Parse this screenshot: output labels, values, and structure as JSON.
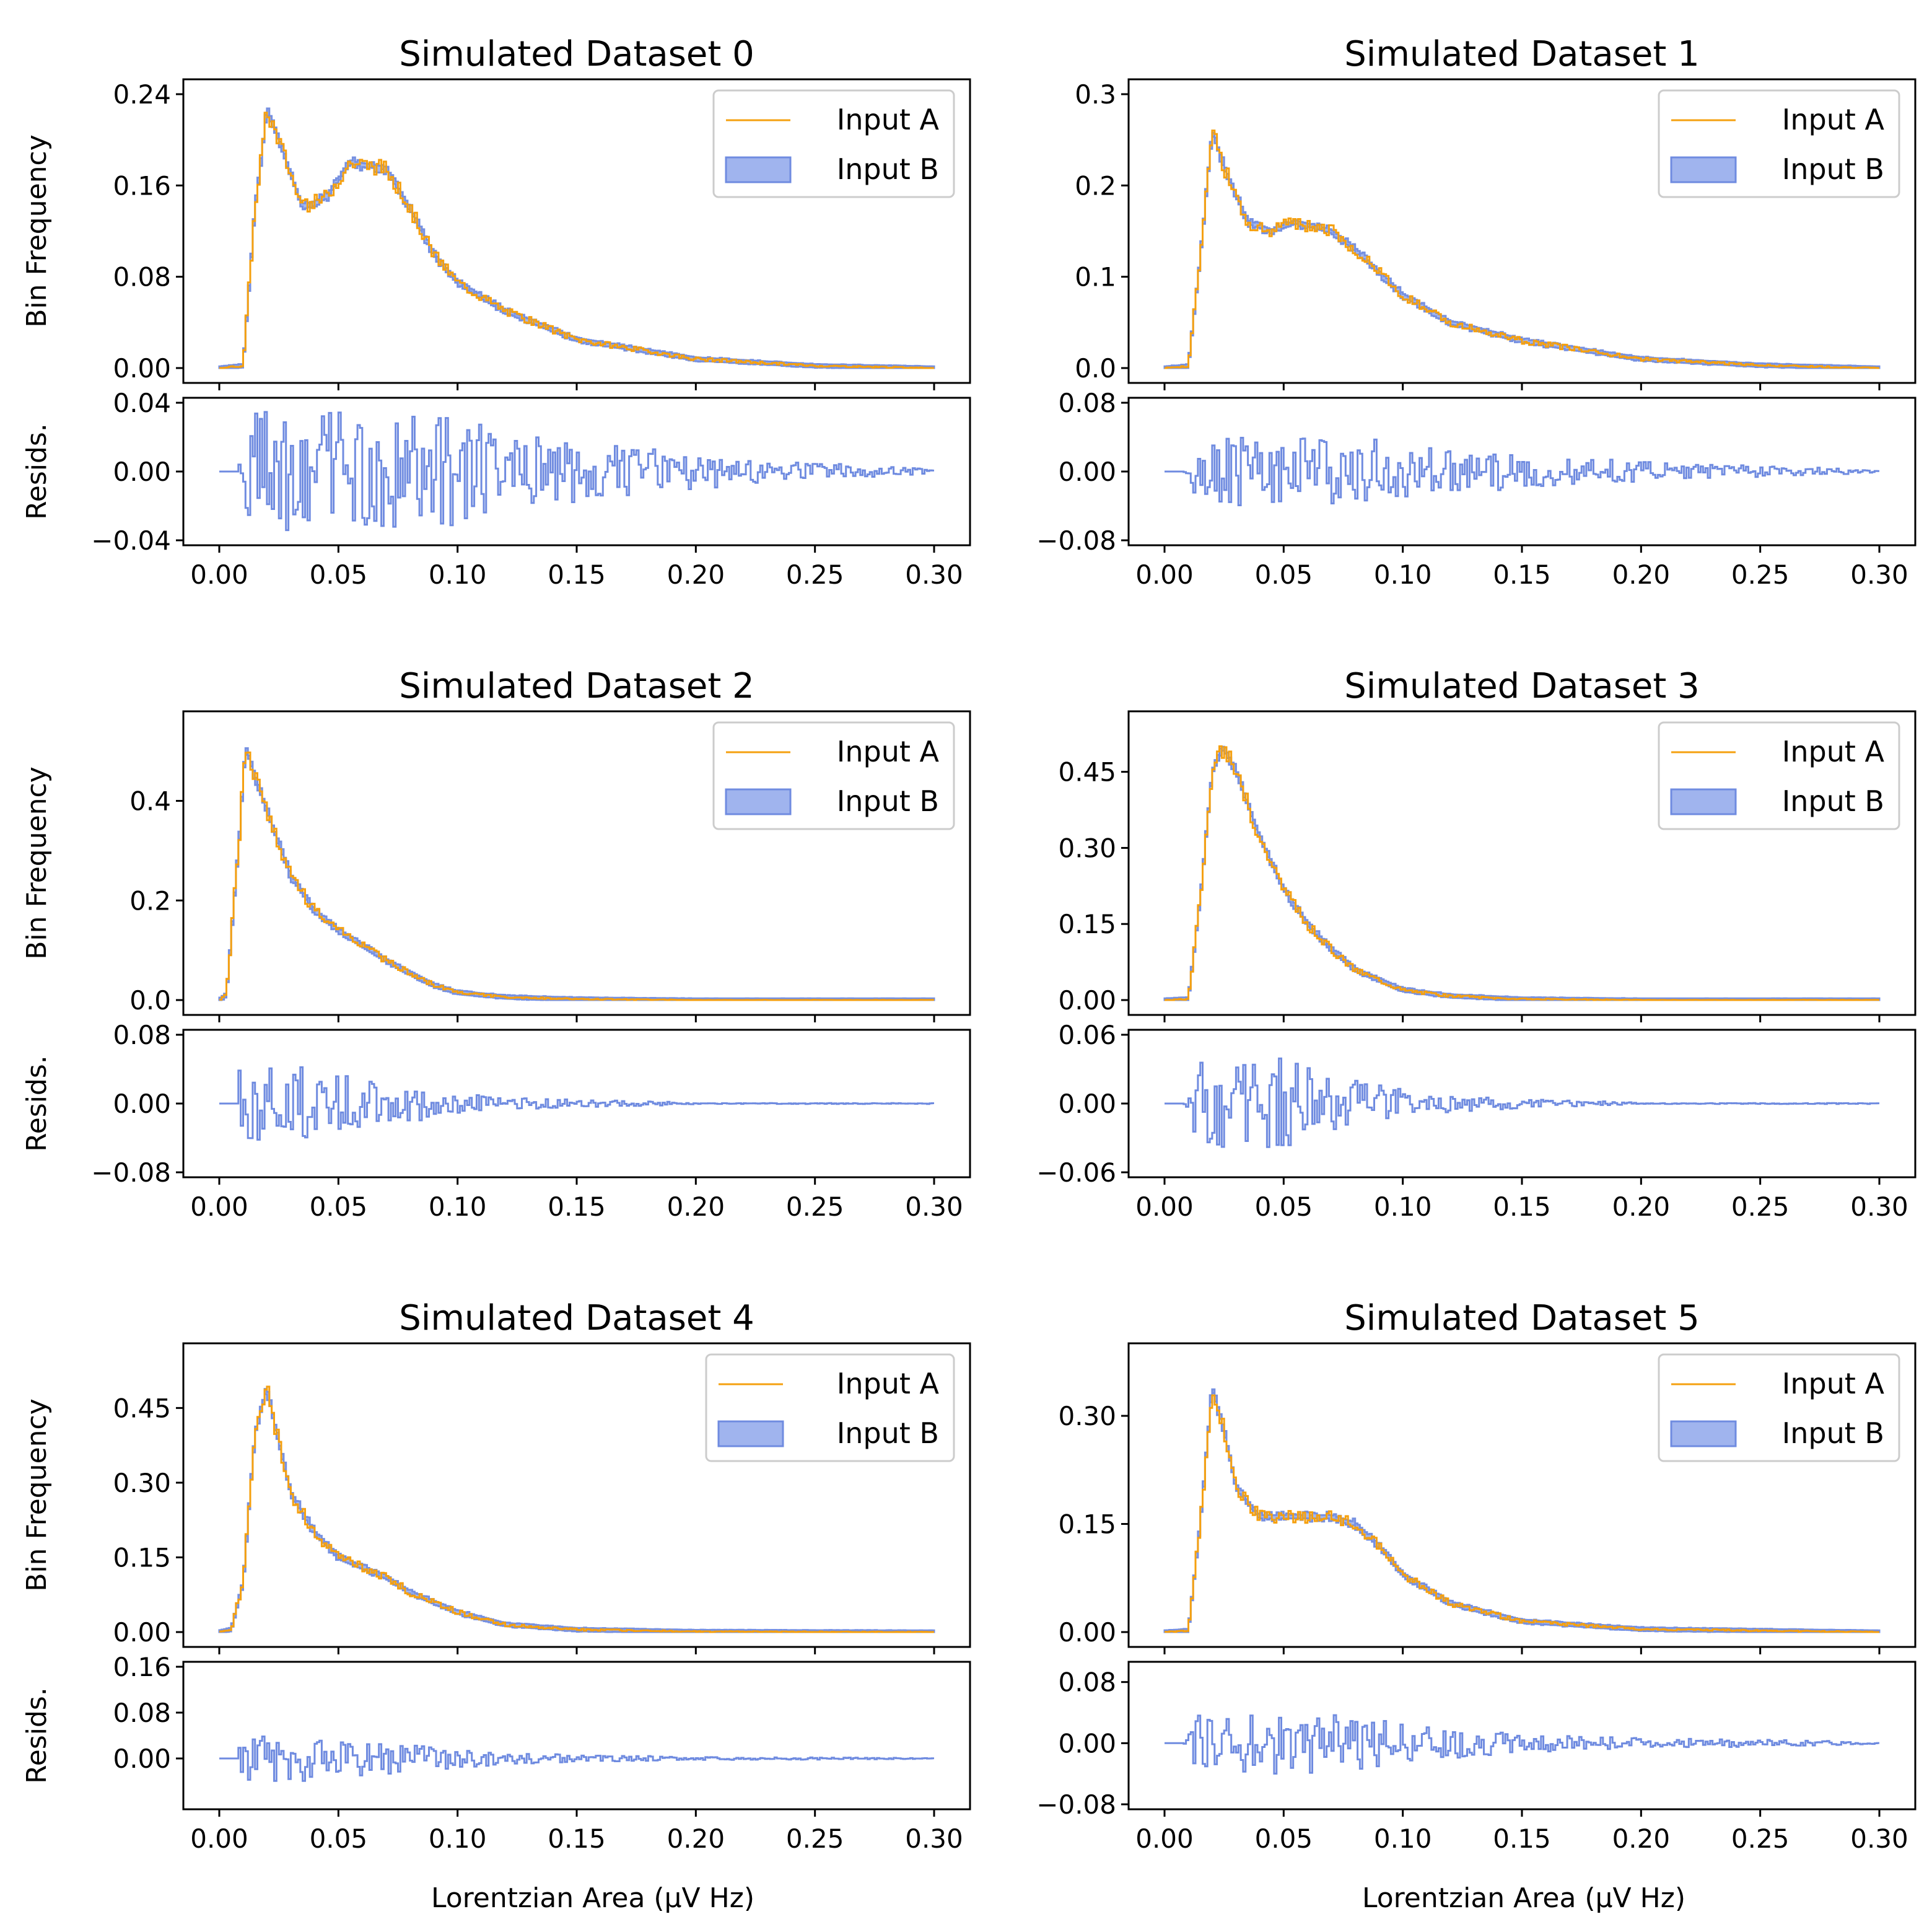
{
  "figure": {
    "xlabel": "Lorentzian Area (μV Hz)",
    "hist_ylabel": "Bin Frequency",
    "resid_ylabel": "Resids.",
    "legend": [
      "Input A",
      "Input B"
    ],
    "colors": {
      "input_a": "#f5a00f",
      "input_b_fill": "#a0b4ee",
      "input_b_edge": "#6f8be0",
      "resid": "#6f8be0"
    }
  },
  "chart_data": [
    {
      "type": "histogram",
      "title": "Simulated Dataset 0",
      "xlim": [
        0,
        0.3
      ],
      "xticks": [
        "0.00",
        "0.05",
        "0.10",
        "0.15",
        "0.20",
        "0.25",
        "0.30"
      ],
      "ylim": [
        0,
        0.24
      ],
      "yticks": [
        "0.00",
        "0.08",
        "0.16",
        "0.24"
      ],
      "resid_ylim": [
        -0.04,
        0.04
      ],
      "resid_yticks": [
        "−0.04",
        "0.00",
        "0.04"
      ],
      "curve": {
        "x": [
          0,
          0.01,
          0.015,
          0.02,
          0.025,
          0.035,
          0.045,
          0.055,
          0.07,
          0.08,
          0.09,
          0.1,
          0.12,
          0.15,
          0.2,
          0.25,
          0.3
        ],
        "y": [
          0,
          0.002,
          0.14,
          0.225,
          0.2,
          0.14,
          0.15,
          0.18,
          0.175,
          0.14,
          0.1,
          0.075,
          0.05,
          0.025,
          0.008,
          0.002,
          0
        ]
      },
      "resid_amp": 0.035
    },
    {
      "type": "histogram",
      "title": "Simulated Dataset 1",
      "xlim": [
        0,
        0.3
      ],
      "xticks": [
        "0.00",
        "0.05",
        "0.10",
        "0.15",
        "0.20",
        "0.25",
        "0.30"
      ],
      "ylim": [
        0,
        0.3
      ],
      "yticks": [
        "0.0",
        "0.1",
        "0.2",
        "0.3"
      ],
      "resid_ylim": [
        -0.08,
        0.08
      ],
      "resid_yticks": [
        "−0.08",
        "0.00",
        "0.08"
      ],
      "curve": {
        "x": [
          0,
          0.01,
          0.015,
          0.02,
          0.025,
          0.035,
          0.045,
          0.055,
          0.07,
          0.08,
          0.1,
          0.12,
          0.15,
          0.2,
          0.25,
          0.3
        ],
        "y": [
          0,
          0.002,
          0.12,
          0.26,
          0.22,
          0.16,
          0.15,
          0.16,
          0.15,
          0.13,
          0.08,
          0.05,
          0.03,
          0.01,
          0.003,
          0
        ]
      },
      "resid_amp": 0.04
    },
    {
      "type": "histogram",
      "title": "Simulated Dataset 2",
      "xlim": [
        0,
        0.3
      ],
      "xticks": [
        "0.00",
        "0.05",
        "0.10",
        "0.15",
        "0.20",
        "0.25",
        "0.30"
      ],
      "ylim": [
        0,
        0.55
      ],
      "yticks": [
        "0.0",
        "0.2",
        "0.4"
      ],
      "resid_ylim": [
        -0.08,
        0.08
      ],
      "resid_yticks": [
        "−0.08",
        "0.00",
        "0.08"
      ],
      "curve": {
        "x": [
          0,
          0.003,
          0.008,
          0.011,
          0.015,
          0.02,
          0.03,
          0.04,
          0.05,
          0.06,
          0.07,
          0.09,
          0.1,
          0.12,
          0.15,
          0.2,
          0.3
        ],
        "y": [
          0,
          0.01,
          0.3,
          0.51,
          0.45,
          0.38,
          0.25,
          0.18,
          0.14,
          0.11,
          0.08,
          0.03,
          0.015,
          0.006,
          0.002,
          0,
          0
        ]
      },
      "resid_amp": 0.045
    },
    {
      "type": "histogram",
      "title": "Simulated Dataset 3",
      "xlim": [
        0,
        0.3
      ],
      "xticks": [
        "0.00",
        "0.05",
        "0.10",
        "0.15",
        "0.20",
        "0.25",
        "0.30"
      ],
      "ylim": [
        0,
        0.54
      ],
      "yticks": [
        "0.00",
        "0.15",
        "0.30",
        "0.45"
      ],
      "resid_ylim": [
        -0.06,
        0.06
      ],
      "resid_yticks": [
        "−0.06",
        "0.00",
        "0.06"
      ],
      "curve": {
        "x": [
          0,
          0.01,
          0.015,
          0.02,
          0.025,
          0.03,
          0.04,
          0.05,
          0.06,
          0.07,
          0.08,
          0.1,
          0.12,
          0.15,
          0.2,
          0.3
        ],
        "y": [
          0,
          0.002,
          0.2,
          0.45,
          0.5,
          0.45,
          0.32,
          0.22,
          0.15,
          0.1,
          0.06,
          0.02,
          0.008,
          0.002,
          0,
          0
        ]
      },
      "resid_amp": 0.04
    },
    {
      "type": "histogram",
      "title": "Simulated Dataset 4",
      "xlim": [
        0,
        0.3
      ],
      "xticks": [
        "0.00",
        "0.05",
        "0.10",
        "0.15",
        "0.20",
        "0.25",
        "0.30"
      ],
      "ylim": [
        0,
        0.55
      ],
      "yticks": [
        "0.00",
        "0.15",
        "0.30",
        "0.45"
      ],
      "resid_ylim": [
        -0.08,
        0.16
      ],
      "resid_yticks": [
        "0.00",
        "0.08",
        "0.16"
      ],
      "curve": {
        "x": [
          0,
          0.005,
          0.01,
          0.015,
          0.02,
          0.025,
          0.03,
          0.04,
          0.05,
          0.06,
          0.07,
          0.08,
          0.1,
          0.12,
          0.15,
          0.2,
          0.3
        ],
        "y": [
          0,
          0.005,
          0.1,
          0.4,
          0.49,
          0.38,
          0.28,
          0.2,
          0.15,
          0.13,
          0.11,
          0.08,
          0.04,
          0.015,
          0.005,
          0.001,
          0
        ]
      },
      "resid_amp": 0.04
    },
    {
      "type": "histogram",
      "title": "Simulated Dataset 5",
      "xlim": [
        0,
        0.3
      ],
      "xticks": [
        "0.00",
        "0.05",
        "0.10",
        "0.15",
        "0.20",
        "0.25",
        "0.30"
      ],
      "ylim": [
        0,
        0.38
      ],
      "yticks": [
        "0.00",
        "0.15",
        "0.30"
      ],
      "resid_ylim": [
        -0.08,
        0.1
      ],
      "resid_yticks": [
        "−0.08",
        "0.00",
        "0.08"
      ],
      "curve": {
        "x": [
          0,
          0.01,
          0.015,
          0.02,
          0.025,
          0.03,
          0.04,
          0.05,
          0.06,
          0.07,
          0.08,
          0.09,
          0.1,
          0.12,
          0.15,
          0.2,
          0.3
        ],
        "y": [
          0,
          0.002,
          0.15,
          0.34,
          0.28,
          0.2,
          0.16,
          0.16,
          0.16,
          0.16,
          0.15,
          0.12,
          0.08,
          0.04,
          0.015,
          0.004,
          0
        ]
      },
      "resid_amp": 0.04
    }
  ]
}
